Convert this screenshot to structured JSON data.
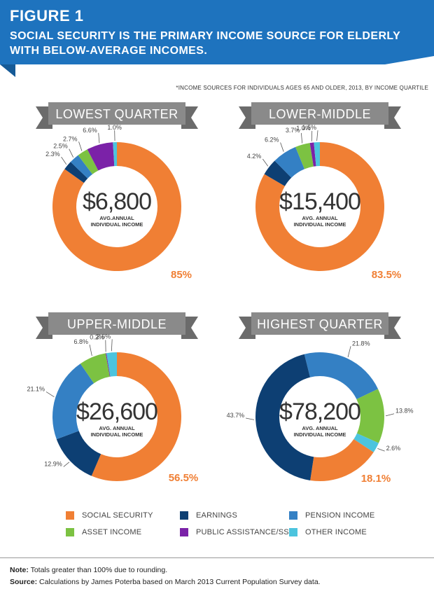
{
  "header": {
    "figure_label": "FIGURE 1",
    "headline": "SOCIAL SECURITY IS THE PRIMARY INCOME SOURCE FOR ELDERLY WITH BELOW-AVERAGE INCOMES.",
    "background_color": "#1E73BE",
    "shadow_color": "#155A97"
  },
  "subnote": "*INCOME SOURCES FOR INDIVIDUALS AGES 65 AND OLDER, 2013, BY INCOME QUARTILE",
  "legend": {
    "items": [
      {
        "key": "social_security",
        "label": "SOCIAL SECURITY",
        "color": "#F07F34"
      },
      {
        "key": "earnings",
        "label": "EARNINGS",
        "color": "#0D3F73"
      },
      {
        "key": "pension",
        "label": "PENSION INCOME",
        "color": "#3480C4"
      },
      {
        "key": "asset",
        "label": "ASSET INCOME",
        "color": "#7CC242"
      },
      {
        "key": "public",
        "label": "PUBLIC ASSISTANCE/SSI",
        "color": "#7B22A8"
      },
      {
        "key": "other",
        "label": "OTHER INCOME",
        "color": "#4CC4DE"
      }
    ]
  },
  "chart_data": [
    {
      "type": "pie",
      "title": "LOWEST QUARTER",
      "center_value": "$6,800",
      "center_label_1": "AVG.ANNUAL",
      "center_label_2": "INDIVIDUAL INCOME",
      "slices": [
        {
          "key": "social_security",
          "value": 85,
          "label": "85%"
        },
        {
          "key": "earnings",
          "value": 2.3,
          "label": "2.3%"
        },
        {
          "key": "pension",
          "value": 2.5,
          "label": "2.5%"
        },
        {
          "key": "asset",
          "value": 2.7,
          "label": "2.7%"
        },
        {
          "key": "public",
          "value": 6.6,
          "label": "6.6%"
        },
        {
          "key": "other",
          "value": 1.0,
          "label": "1.0%"
        }
      ]
    },
    {
      "type": "pie",
      "title": "LOWER-MIDDLE",
      "center_value": "$15,400",
      "center_label_1": "AVG. ANNUAL",
      "center_label_2": "INDIVIDUAL INCOME",
      "slices": [
        {
          "key": "social_security",
          "value": 83.5,
          "label": "83.5%"
        },
        {
          "key": "earnings",
          "value": 4.2,
          "label": "4.2%"
        },
        {
          "key": "pension",
          "value": 6.2,
          "label": "6.2%"
        },
        {
          "key": "asset",
          "value": 3.7,
          "label": "3.7%"
        },
        {
          "key": "public",
          "value": 1.0,
          "label": "1.0%"
        },
        {
          "key": "other",
          "value": 1.5,
          "label": "1.5%"
        }
      ]
    },
    {
      "type": "pie",
      "title": "UPPER-MIDDLE",
      "center_value": "$26,600",
      "center_label_1": "AVG. ANNUAL",
      "center_label_2": "INDIVIDUAL INCOME",
      "slices": [
        {
          "key": "social_security",
          "value": 56.5,
          "label": "56.5%"
        },
        {
          "key": "earnings",
          "value": 12.9,
          "label": "12.9%"
        },
        {
          "key": "pension",
          "value": 21.1,
          "label": "21.1%"
        },
        {
          "key": "asset",
          "value": 6.8,
          "label": "6.8%"
        },
        {
          "key": "public",
          "value": 0.2,
          "label": "0.2%"
        },
        {
          "key": "other",
          "value": 2.6,
          "label": "2.6%"
        }
      ]
    },
    {
      "type": "pie",
      "title": "HIGHEST QUARTER",
      "center_value": "$78,200",
      "center_label_1": "AVG. ANNUAL",
      "center_label_2": "INDIVIDUAL INCOME",
      "slices": [
        {
          "key": "social_security",
          "value": 18.1,
          "label": "18.1%"
        },
        {
          "key": "earnings",
          "value": 43.7,
          "label": "43.7%"
        },
        {
          "key": "pension",
          "value": 21.8,
          "label": "21.8%"
        },
        {
          "key": "asset",
          "value": 13.8,
          "label": "13.8%"
        },
        {
          "key": "other",
          "value": 2.6,
          "label": "2.6%"
        }
      ]
    }
  ],
  "footer": {
    "note_label": "Note:",
    "note_text": " Totals greater than 100% due to rounding.",
    "source_label": "Source:",
    "source_text": "  Calculations by James Poterba based on March 2013 Current Population Survey data."
  }
}
